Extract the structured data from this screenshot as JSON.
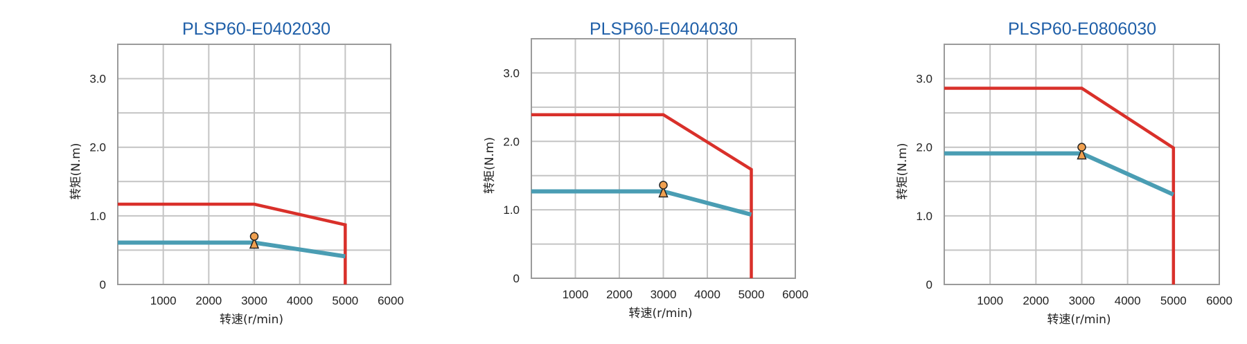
{
  "chart_data": [
    {
      "type": "line",
      "title": "PLSP60-E0402030",
      "xlabel": "转速(r/min)",
      "ylabel": "转矩(N.m)",
      "xlim": [
        0,
        6000
      ],
      "ylim": [
        0,
        3.5
      ],
      "x_ticks": [
        "1000",
        "2000",
        "3000",
        "4000",
        "5000",
        "6000"
      ],
      "y_ticks": [
        "0",
        "1.0",
        "2.0",
        "3.0"
      ],
      "grid": true,
      "colors": {
        "peak": "#d9302a",
        "rated": "#4a9db3",
        "marker": "#f0a050"
      },
      "series": [
        {
          "role": "peak",
          "x": [
            0,
            3000,
            5000,
            5000
          ],
          "y": [
            1.17,
            1.17,
            0.87,
            0
          ]
        },
        {
          "role": "rated",
          "x": [
            0,
            3000,
            5000
          ],
          "y": [
            0.61,
            0.61,
            0.41
          ]
        }
      ],
      "rated_point": {
        "x": 3000,
        "y": 0.61
      }
    },
    {
      "type": "line",
      "title": "PLSP60-E0404030",
      "xlabel": "转速(r/min)",
      "ylabel": "转矩(N.m)",
      "xlim": [
        0,
        6000
      ],
      "ylim": [
        0,
        3.5
      ],
      "x_ticks": [
        "1000",
        "2000",
        "3000",
        "4000",
        "5000",
        "6000"
      ],
      "y_ticks": [
        "0",
        "1.0",
        "2.0",
        "3.0"
      ],
      "grid": true,
      "colors": {
        "peak": "#d9302a",
        "rated": "#4a9db3",
        "marker": "#f0a050"
      },
      "series": [
        {
          "role": "peak",
          "x": [
            0,
            3000,
            5000,
            5000
          ],
          "y": [
            2.39,
            2.39,
            1.59,
            0
          ]
        },
        {
          "role": "rated",
          "x": [
            0,
            3000,
            5000
          ],
          "y": [
            1.27,
            1.27,
            0.93
          ]
        }
      ],
      "rated_point": {
        "x": 3000,
        "y": 1.27
      }
    },
    {
      "type": "line",
      "title": "PLSP60-E0806030",
      "xlabel": "转速(r/min)",
      "ylabel": "转矩(N.m)",
      "xlim": [
        0,
        6000
      ],
      "ylim": [
        0,
        3.5
      ],
      "x_ticks": [
        "1000",
        "2000",
        "3000",
        "4000",
        "5000",
        "6000"
      ],
      "y_ticks": [
        "0",
        "1.0",
        "2.0",
        "3.0"
      ],
      "grid": true,
      "colors": {
        "peak": "#d9302a",
        "rated": "#4a9db3",
        "marker": "#f0a050"
      },
      "series": [
        {
          "role": "peak",
          "x": [
            0,
            3000,
            5000,
            5000
          ],
          "y": [
            2.86,
            2.86,
            1.99,
            0
          ]
        },
        {
          "role": "rated",
          "x": [
            0,
            3000,
            5000
          ],
          "y": [
            1.91,
            1.91,
            1.31
          ]
        }
      ],
      "rated_point": {
        "x": 3000,
        "y": 1.91
      }
    }
  ]
}
